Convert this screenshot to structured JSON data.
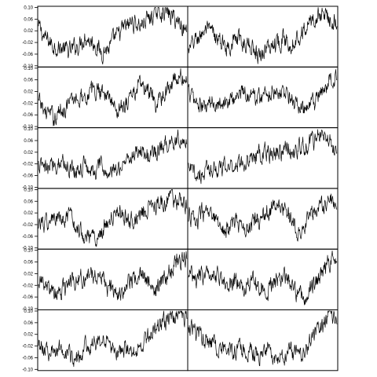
{
  "chart_data": {
    "type": "line",
    "layout": "grid of 6 rows x 2 columns of small line plots sharing a y axis on the left column",
    "ylim": [
      -0.1,
      0.1
    ],
    "y_ticks": [
      -0.1,
      -0.06,
      -0.02,
      0.02,
      0.06,
      0.1
    ],
    "y_tick_labels": [
      "-0.10",
      "-0.06",
      "-0.02",
      "0.02",
      "0.06",
      "0.10"
    ],
    "x_axis": "none",
    "grid": false,
    "legend": "none",
    "line_color": "#000000",
    "panels": [
      {
        "row": 1,
        "col": 1,
        "trend": [
          0.03,
          -0.01,
          -0.03,
          -0.04,
          -0.05,
          -0.03,
          0.0,
          -0.02,
          -0.05,
          -0.04,
          0.0,
          0.03,
          0.05,
          0.04,
          0.06,
          0.08,
          0.09,
          0.07,
          0.05,
          0.02
        ]
      },
      {
        "row": 1,
        "col": 2,
        "trend": [
          -0.05,
          -0.01,
          0.02,
          0.01,
          -0.02,
          -0.03,
          -0.01,
          -0.02,
          -0.03,
          -0.06,
          -0.04,
          -0.02,
          -0.01,
          -0.02,
          0.0,
          0.03,
          0.06,
          0.08,
          0.07,
          0.05
        ]
      },
      {
        "row": 2,
        "col": 1,
        "trend": [
          -0.02,
          -0.05,
          -0.07,
          -0.04,
          -0.02,
          0.0,
          0.01,
          0.02,
          0.03,
          0.0,
          -0.04,
          -0.02,
          0.01,
          0.04,
          0.02,
          -0.03,
          0.01,
          0.05,
          0.07,
          0.06
        ]
      },
      {
        "row": 2,
        "col": 2,
        "trend": [
          0.02,
          -0.02,
          -0.04,
          -0.02,
          -0.01,
          -0.02,
          0.0,
          0.02,
          0.01,
          0.0,
          0.01,
          0.03,
          0.02,
          0.0,
          -0.03,
          -0.05,
          -0.02,
          0.01,
          0.05,
          0.07
        ]
      },
      {
        "row": 3,
        "col": 1,
        "trend": [
          -0.03,
          -0.04,
          -0.02,
          -0.01,
          -0.03,
          -0.04,
          -0.02,
          -0.05,
          -0.03,
          -0.06,
          -0.04,
          -0.01,
          0.01,
          0.03,
          0.01,
          0.02,
          0.04,
          0.06,
          0.07,
          0.06
        ]
      },
      {
        "row": 3,
        "col": 2,
        "trend": [
          -0.04,
          -0.06,
          -0.05,
          -0.03,
          -0.04,
          -0.03,
          -0.02,
          -0.01,
          0.0,
          0.01,
          0.02,
          0.01,
          0.03,
          0.02,
          0.03,
          0.04,
          0.06,
          0.08,
          0.06,
          0.03
        ]
      },
      {
        "row": 4,
        "col": 1,
        "trend": [
          -0.01,
          -0.02,
          0.0,
          -0.01,
          0.0,
          -0.03,
          -0.05,
          -0.07,
          -0.04,
          -0.01,
          0.02,
          0.01,
          0.0,
          0.02,
          0.04,
          0.05,
          0.06,
          0.07,
          0.06,
          0.04
        ]
      },
      {
        "row": 4,
        "col": 2,
        "trend": [
          0.01,
          -0.01,
          0.02,
          0.0,
          -0.02,
          -0.04,
          -0.01,
          -0.03,
          -0.02,
          0.0,
          0.02,
          0.04,
          0.03,
          0.0,
          -0.03,
          -0.01,
          0.02,
          0.05,
          0.07,
          0.05
        ]
      },
      {
        "row": 5,
        "col": 1,
        "trend": [
          0.0,
          -0.03,
          -0.05,
          -0.04,
          -0.01,
          0.0,
          0.01,
          0.02,
          0.01,
          -0.03,
          -0.05,
          -0.03,
          0.0,
          0.02,
          -0.01,
          -0.04,
          0.0,
          0.04,
          0.07,
          0.08
        ]
      },
      {
        "row": 5,
        "col": 2,
        "trend": [
          0.02,
          0.0,
          0.01,
          0.03,
          0.01,
          -0.02,
          -0.01,
          -0.03,
          0.0,
          -0.02,
          -0.04,
          -0.01,
          0.01,
          -0.02,
          -0.05,
          -0.06,
          -0.02,
          0.02,
          0.06,
          0.08
        ]
      },
      {
        "row": 6,
        "col": 1,
        "trend": [
          -0.01,
          -0.03,
          -0.04,
          -0.02,
          -0.05,
          -0.06,
          -0.03,
          -0.01,
          0.0,
          -0.02,
          -0.04,
          -0.03,
          -0.05,
          -0.02,
          0.01,
          0.04,
          0.06,
          0.08,
          0.09,
          0.08
        ]
      },
      {
        "row": 6,
        "col": 2,
        "trend": [
          0.05,
          0.02,
          0.01,
          -0.01,
          -0.02,
          -0.03,
          -0.04,
          -0.03,
          -0.04,
          -0.05,
          -0.04,
          -0.06,
          -0.05,
          -0.04,
          -0.05,
          -0.03,
          0.01,
          0.05,
          0.08,
          0.07
        ]
      }
    ]
  }
}
